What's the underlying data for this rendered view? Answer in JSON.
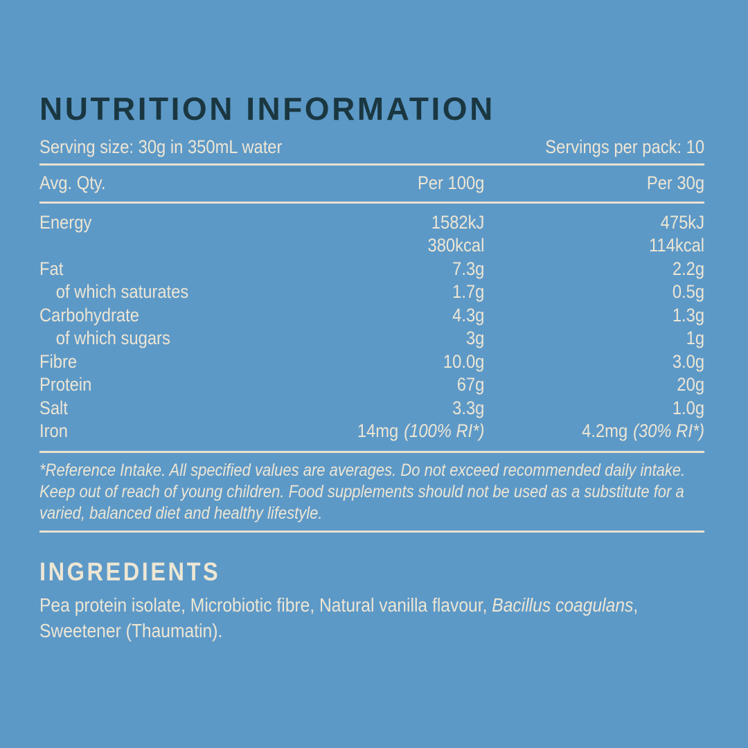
{
  "colors": {
    "background": "#5d99c7",
    "text_cream": "#ede6d4",
    "title_navy": "#1a3741",
    "divider": "#e9e2d0"
  },
  "header": {
    "title": "NUTRITION INFORMATION",
    "serving_size": "Serving size: 30g in 350mL water",
    "servings_per_pack": "Servings per pack: 10"
  },
  "table": {
    "columns": [
      "Avg. Qty.",
      "Per 100g",
      "Per 30g"
    ],
    "rows": [
      {
        "label": "Energy",
        "indent": false,
        "per100": "1582kJ",
        "per100_note": "",
        "per30": "475kJ",
        "per30_note": ""
      },
      {
        "label": "",
        "indent": false,
        "per100": "380kcal",
        "per100_note": "",
        "per30": "114kcal",
        "per30_note": ""
      },
      {
        "label": "Fat",
        "indent": false,
        "per100": "7.3g",
        "per100_note": "",
        "per30": "2.2g",
        "per30_note": ""
      },
      {
        "label": "of which saturates",
        "indent": true,
        "per100": "1.7g",
        "per100_note": "",
        "per30": "0.5g",
        "per30_note": ""
      },
      {
        "label": "Carbohydrate",
        "indent": false,
        "per100": "4.3g",
        "per100_note": "",
        "per30": "1.3g",
        "per30_note": ""
      },
      {
        "label": "of which sugars",
        "indent": true,
        "per100": "3g",
        "per100_note": "",
        "per30": "1g",
        "per30_note": ""
      },
      {
        "label": "Fibre",
        "indent": false,
        "per100": "10.0g",
        "per100_note": "",
        "per30": "3.0g",
        "per30_note": ""
      },
      {
        "label": "Protein",
        "indent": false,
        "per100": "67g",
        "per100_note": "",
        "per30": "20g",
        "per30_note": ""
      },
      {
        "label": "Salt",
        "indent": false,
        "per100": "3.3g",
        "per100_note": "",
        "per30": "1.0g",
        "per30_note": ""
      },
      {
        "label": "Iron",
        "indent": false,
        "per100": "14mg",
        "per100_note": "(100% RI*)",
        "per30": "4.2mg",
        "per30_note": "(30% RI*)"
      }
    ]
  },
  "footnote": "*Reference Intake. All specified values are averages. Do not exceed recommended daily intake. Keep out of reach of young children. Food supplements should not be used as a substitute for a varied, balanced diet and healthy lifestyle.",
  "ingredients": {
    "heading": "INGREDIENTS",
    "text_parts": {
      "before": "Pea protein isolate, Microbiotic fibre, Natural vanilla flavour, ",
      "italic": "Bacillus coagulans",
      "after": ", Sweetener (Thaumatin)."
    }
  }
}
